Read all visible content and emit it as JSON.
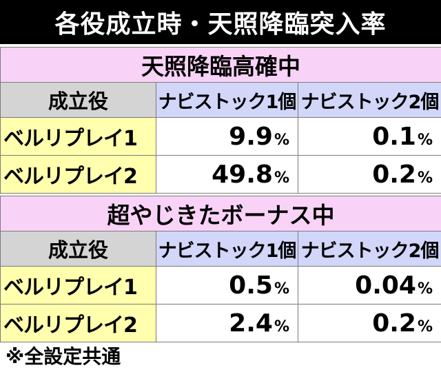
{
  "title": "各役成立時・天照降臨突入率",
  "tables": [
    {
      "section": "天照降臨高確中",
      "headers": [
        "成立役",
        "ナビストック1個",
        "ナビストック2個"
      ],
      "rows": [
        {
          "role": "ベルリプレイ1",
          "v1": "9.9",
          "v2": "0.1"
        },
        {
          "role": "ベルリプレイ2",
          "v1": "49.8",
          "v2": "0.2"
        }
      ]
    },
    {
      "section": "超やじきたボーナス中",
      "headers": [
        "成立役",
        "ナビストック1個",
        "ナビストック2個"
      ],
      "rows": [
        {
          "role": "ベルリプレイ1",
          "v1": "0.5",
          "v2": "0.04"
        },
        {
          "role": "ベルリプレイ2",
          "v1": "2.4",
          "v2": "0.2"
        }
      ]
    }
  ],
  "percent_symbol": "%",
  "footnote": "※全設定共通",
  "colors": {
    "section_header": "#f9d3f7",
    "role_header": "#d4d4d4",
    "navi_header": "#d2d6f8",
    "role_cell": "#ffffad"
  }
}
